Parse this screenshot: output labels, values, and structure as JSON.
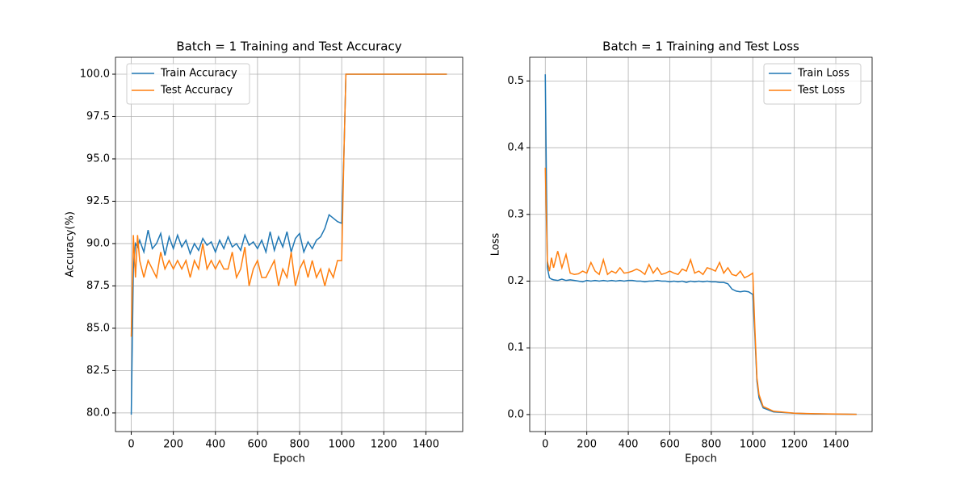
{
  "chart_data": [
    {
      "type": "line",
      "title": "Batch = 1 Training and Test Accuracy",
      "x_label": "Epoch",
      "y_label": "Accuracy(%)",
      "x": [
        0,
        10,
        20,
        30,
        40,
        60,
        80,
        100,
        120,
        140,
        160,
        180,
        200,
        220,
        240,
        260,
        280,
        300,
        320,
        340,
        360,
        380,
        400,
        420,
        440,
        460,
        480,
        500,
        520,
        540,
        560,
        580,
        600,
        620,
        640,
        660,
        680,
        700,
        720,
        740,
        760,
        780,
        800,
        820,
        840,
        860,
        880,
        900,
        920,
        940,
        960,
        980,
        1000,
        1010,
        1020,
        1030,
        1050,
        1100,
        1200,
        1300,
        1400,
        1500
      ],
      "series": [
        {
          "name": "Train Accuracy",
          "color": "#1f77b4",
          "values": [
            79.9,
            88.5,
            90,
            89.8,
            90.2,
            89.5,
            90.8,
            89.7,
            90,
            90.6,
            89.3,
            90.4,
            89.7,
            90.5,
            89.8,
            90.2,
            89.4,
            90,
            89.6,
            90.3,
            89.9,
            90.1,
            89.5,
            90.2,
            89.7,
            90.4,
            89.8,
            90,
            89.6,
            90.5,
            89.9,
            90.1,
            89.7,
            90.2,
            89.5,
            90.7,
            89.6,
            90.4,
            89.8,
            90.7,
            89.5,
            90.3,
            90.6,
            89.5,
            90.1,
            89.7,
            90.2,
            90.4,
            90.9,
            91.7,
            91.5,
            91.3,
            91.2,
            95,
            100,
            100,
            100,
            100,
            100,
            100,
            100,
            100
          ]
        },
        {
          "name": "Test Accuracy",
          "color": "#ff7f0e",
          "values": [
            84.5,
            90.5,
            88,
            90.5,
            89,
            88,
            89,
            88.5,
            88,
            89.5,
            88.5,
            89,
            88.5,
            89,
            88.5,
            89,
            88,
            89,
            88.5,
            90,
            88.5,
            89,
            88.5,
            89,
            88.5,
            88.5,
            89.5,
            88,
            88.5,
            89.8,
            87.5,
            88.5,
            89,
            88,
            88,
            88.5,
            89,
            87.5,
            88.5,
            88,
            89.5,
            87.5,
            88.5,
            89,
            88,
            89,
            88,
            88.5,
            87.5,
            88.5,
            88,
            89,
            89,
            95,
            100,
            100,
            100,
            100,
            100,
            100,
            100,
            100
          ]
        }
      ],
      "xlim": [
        -75,
        1575
      ],
      "xticks": [
        0,
        200,
        400,
        600,
        800,
        1000,
        1200,
        1400
      ],
      "ylim": [
        78.9,
        101.0
      ],
      "yticks": [
        {
          "value": 80,
          "label": "80.0"
        },
        82.5,
        {
          "value": 85,
          "label": "85.0"
        },
        87.5,
        {
          "value": 90,
          "label": "90.0"
        },
        92.5,
        {
          "value": 95,
          "label": "95.0"
        },
        97.5,
        {
          "value": 100,
          "label": "100.0"
        }
      ],
      "grid": true,
      "legend": "upper left"
    },
    {
      "type": "line",
      "title": "Batch = 1 Training and Test Loss",
      "x_label": "Epoch",
      "y_label": "Loss",
      "x": [
        0,
        10,
        20,
        30,
        40,
        60,
        80,
        100,
        120,
        140,
        160,
        180,
        200,
        220,
        240,
        260,
        280,
        300,
        320,
        340,
        360,
        380,
        400,
        420,
        440,
        460,
        480,
        500,
        520,
        540,
        560,
        580,
        600,
        620,
        640,
        660,
        680,
        700,
        720,
        740,
        760,
        780,
        800,
        820,
        840,
        860,
        880,
        900,
        920,
        940,
        960,
        980,
        1000,
        1010,
        1020,
        1030,
        1050,
        1100,
        1200,
        1300,
        1400,
        1500
      ],
      "series": [
        {
          "name": "Train Loss",
          "color": "#1f77b4",
          "values": [
            0.51,
            0.22,
            0.205,
            0.203,
            0.202,
            0.201,
            0.203,
            0.201,
            0.202,
            0.201,
            0.2,
            0.199,
            0.201,
            0.2,
            0.201,
            0.2,
            0.201,
            0.2,
            0.201,
            0.2,
            0.201,
            0.2,
            0.201,
            0.201,
            0.2,
            0.2,
            0.199,
            0.2,
            0.2,
            0.201,
            0.2,
            0.2,
            0.199,
            0.2,
            0.199,
            0.2,
            0.198,
            0.2,
            0.199,
            0.2,
            0.199,
            0.2,
            0.199,
            0.199,
            0.198,
            0.198,
            0.196,
            0.188,
            0.185,
            0.184,
            0.185,
            0.184,
            0.18,
            0.12,
            0.05,
            0.025,
            0.01,
            0.004,
            0.002,
            0.001,
            0.0007,
            0.0003
          ]
        },
        {
          "name": "Test Loss",
          "color": "#ff7f0e",
          "values": [
            0.37,
            0.23,
            0.215,
            0.235,
            0.22,
            0.245,
            0.22,
            0.24,
            0.212,
            0.21,
            0.211,
            0.215,
            0.212,
            0.228,
            0.215,
            0.21,
            0.232,
            0.21,
            0.215,
            0.212,
            0.22,
            0.212,
            0.213,
            0.215,
            0.218,
            0.215,
            0.21,
            0.225,
            0.212,
            0.22,
            0.21,
            0.212,
            0.215,
            0.212,
            0.21,
            0.218,
            0.215,
            0.232,
            0.212,
            0.215,
            0.21,
            0.22,
            0.218,
            0.215,
            0.228,
            0.212,
            0.22,
            0.21,
            0.208,
            0.215,
            0.205,
            0.208,
            0.212,
            0.13,
            0.055,
            0.03,
            0.012,
            0.005,
            0.002,
            0.0012,
            0.0008,
            0.0004
          ]
        }
      ],
      "xlim": [
        -75,
        1575
      ],
      "xticks": [
        0,
        200,
        400,
        600,
        800,
        1000,
        1200,
        1400
      ],
      "ylim": [
        -0.0255,
        0.5355
      ],
      "yticks": [
        {
          "value": 0,
          "label": "0.0"
        },
        0.1,
        0.2,
        0.3,
        0.4,
        0.5
      ],
      "grid": true,
      "legend": "upper right"
    }
  ]
}
